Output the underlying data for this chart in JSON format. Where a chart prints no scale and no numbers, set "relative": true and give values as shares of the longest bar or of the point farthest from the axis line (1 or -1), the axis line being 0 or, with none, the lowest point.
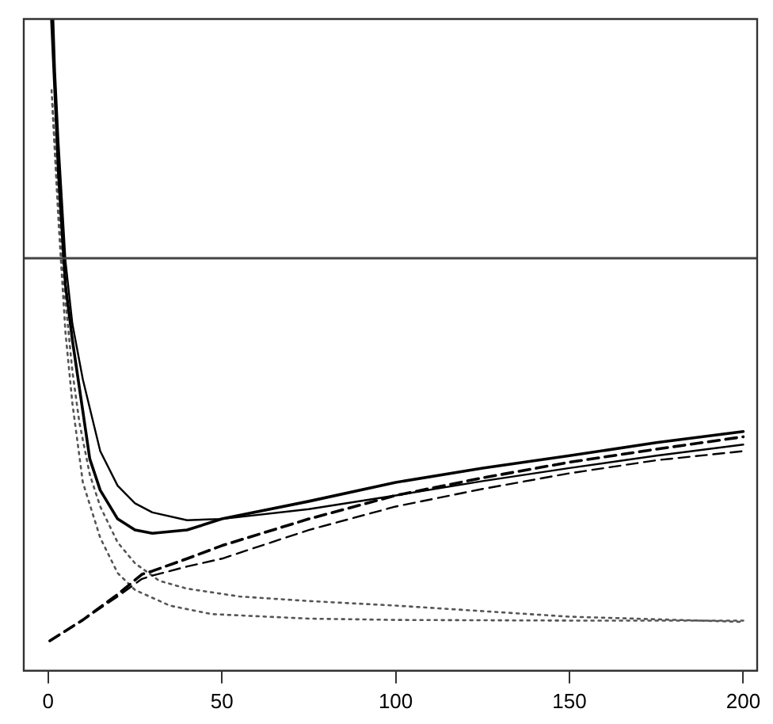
{
  "chart_data": {
    "type": "line",
    "relative": true,
    "xlim": [
      -7,
      204
    ],
    "xticks": [
      0,
      50,
      100,
      150,
      200
    ],
    "tick_labels": "x",
    "grid": false,
    "legend": false,
    "marker": "none",
    "series": [
      {
        "color": "#000000",
        "line_style": "solid",
        "x": [
          1,
          2,
          3,
          5,
          7,
          10,
          12,
          15,
          20,
          25,
          30,
          40,
          50,
          75,
          100,
          125,
          150,
          175,
          200
        ],
        "values": [
          1.0,
          0.883,
          0.762,
          0.592,
          0.507,
          0.398,
          0.325,
          0.277,
          0.233,
          0.216,
          0.211,
          0.216,
          0.233,
          0.26,
          0.289,
          0.311,
          0.33,
          0.35,
          0.367
        ]
      },
      {
        "color": "#000000",
        "line_style": "solid",
        "x": [
          1.5,
          2,
          3,
          5,
          7,
          10,
          15,
          20,
          25,
          30,
          40,
          50,
          75,
          100,
          125,
          150,
          175,
          200
        ],
        "values": [
          1.0,
          0.92,
          0.811,
          0.629,
          0.532,
          0.447,
          0.337,
          0.284,
          0.257,
          0.243,
          0.231,
          0.233,
          0.248,
          0.269,
          0.291,
          0.311,
          0.33,
          0.347
        ]
      },
      {
        "color": "#000000",
        "line_style": "dashed",
        "x": [
          0.5,
          10,
          20,
          27,
          30,
          40,
          50,
          75,
          100,
          125,
          150,
          175,
          200
        ],
        "values": [
          0.046,
          0.078,
          0.117,
          0.148,
          0.153,
          0.172,
          0.192,
          0.233,
          0.269,
          0.296,
          0.32,
          0.34,
          0.359
        ]
      },
      {
        "color": "#000000",
        "line_style": "dashed",
        "x": [
          0.5,
          10,
          20,
          27,
          30,
          40,
          50,
          75,
          100,
          125,
          150,
          175,
          200
        ],
        "values": [
          0.046,
          0.078,
          0.114,
          0.141,
          0.146,
          0.16,
          0.172,
          0.216,
          0.252,
          0.279,
          0.303,
          0.323,
          0.337
        ]
      },
      {
        "color": "#555555",
        "line_style": "dotted",
        "x": [
          1,
          3,
          5,
          7,
          9,
          12,
          15,
          20,
          25,
          32,
          40,
          55,
          75,
          100,
          150,
          200
        ],
        "values": [
          0.891,
          0.714,
          0.568,
          0.459,
          0.381,
          0.301,
          0.252,
          0.197,
          0.165,
          0.138,
          0.126,
          0.114,
          0.107,
          0.1,
          0.083,
          0.075
        ]
      },
      {
        "color": "#555555",
        "line_style": "dotted",
        "x": [
          1.2,
          3,
          5,
          7,
          10,
          15,
          20,
          25,
          35,
          47,
          75,
          100,
          150,
          200
        ],
        "values": [
          0.87,
          0.689,
          0.519,
          0.41,
          0.289,
          0.204,
          0.15,
          0.124,
          0.1,
          0.087,
          0.08,
          0.078,
          0.077,
          0.077
        ]
      }
    ],
    "ref_lines": [
      {
        "axis": "y",
        "value": 0.633,
        "color": "#444444"
      }
    ]
  }
}
